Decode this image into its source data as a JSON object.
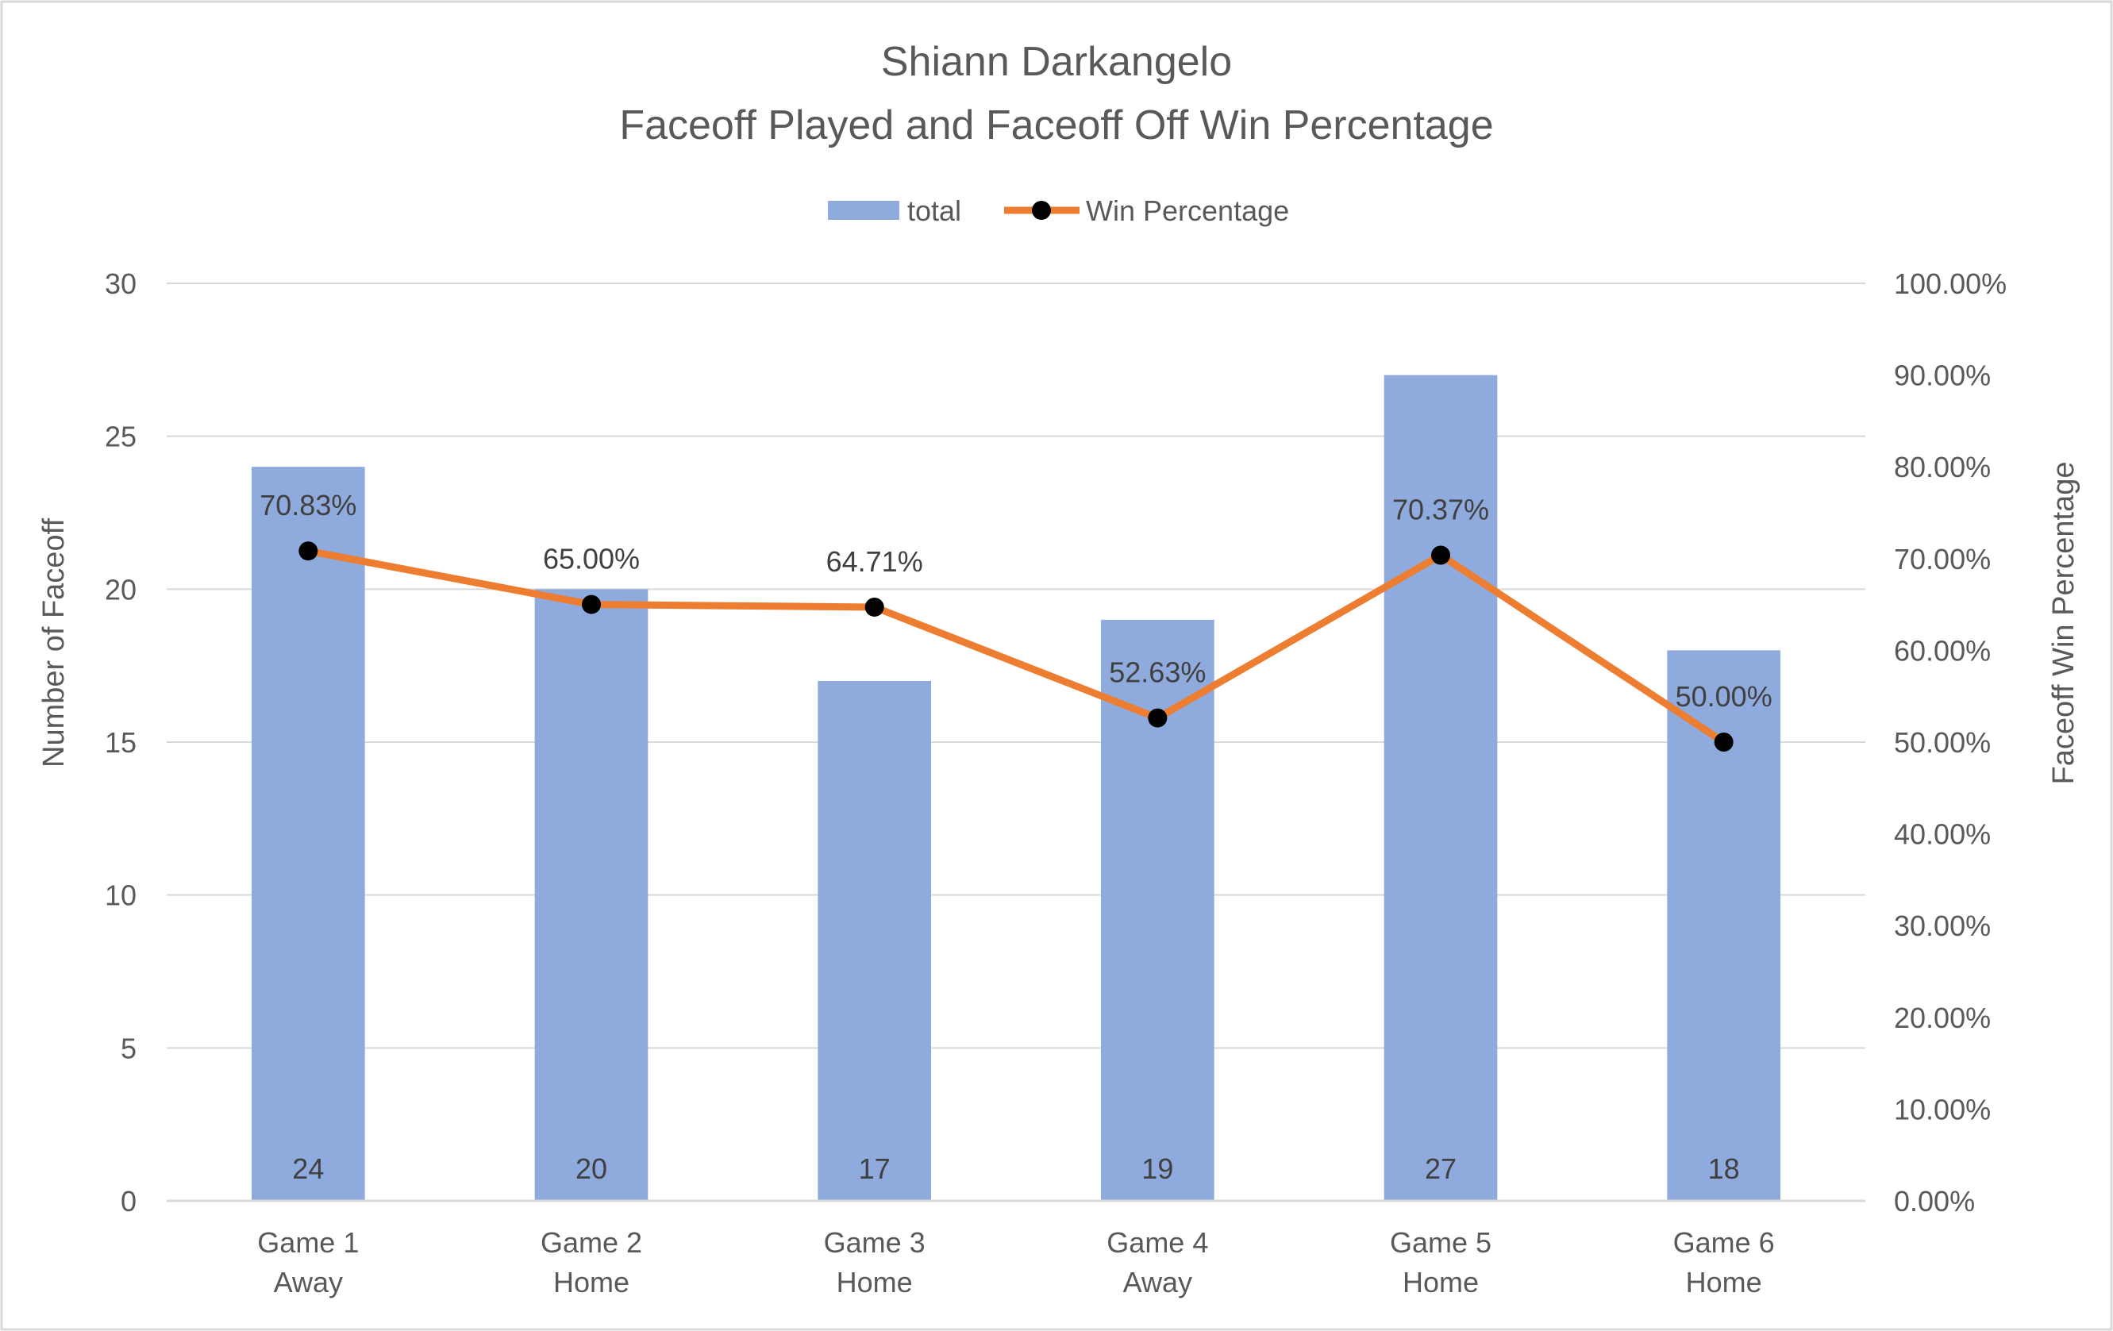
{
  "chart_data": {
    "type": "bar",
    "title_line1": "Shiann Darkangelo",
    "title_line2": "Faceoff Played and Faceoff Off Win Percentage",
    "categories": [
      [
        "Game 1",
        "Away"
      ],
      [
        "Game 2",
        "Home"
      ],
      [
        "Game 3",
        "Home"
      ],
      [
        "Game 4",
        "Away"
      ],
      [
        "Game 5",
        "Home"
      ],
      [
        "Game 6",
        "Home"
      ]
    ],
    "series": [
      {
        "name": "total",
        "type": "bar",
        "axis": "left",
        "color": "#8FAADC",
        "values": [
          24,
          20,
          17,
          19,
          27,
          18
        ],
        "labels": [
          "24",
          "20",
          "17",
          "19",
          "27",
          "18"
        ]
      },
      {
        "name": "Win Percentage",
        "type": "line",
        "axis": "right",
        "color": "#ED7D31",
        "marker_color": "#000000",
        "values": [
          70.83,
          65.0,
          64.71,
          52.63,
          70.37,
          50.0
        ],
        "labels": [
          "70.83%",
          "65.00%",
          "64.71%",
          "52.63%",
          "70.37%",
          "50.00%"
        ]
      }
    ],
    "ylabel": "Number of Faceoff",
    "y2label": "Faceoff Win Percentage",
    "ylim": [
      0,
      30
    ],
    "yticks": [
      0,
      5,
      10,
      15,
      20,
      25,
      30
    ],
    "y2lim": [
      0,
      100
    ],
    "y2ticks": [
      "0.00%",
      "10.00%",
      "20.00%",
      "30.00%",
      "40.00%",
      "50.00%",
      "60.00%",
      "70.00%",
      "80.00%",
      "90.00%",
      "100.00%"
    ],
    "grid": true,
    "legend_position": "top-center",
    "colors": {
      "grid": "#D9D9D9",
      "text": "#595959",
      "border": "#D9D9D9"
    }
  }
}
